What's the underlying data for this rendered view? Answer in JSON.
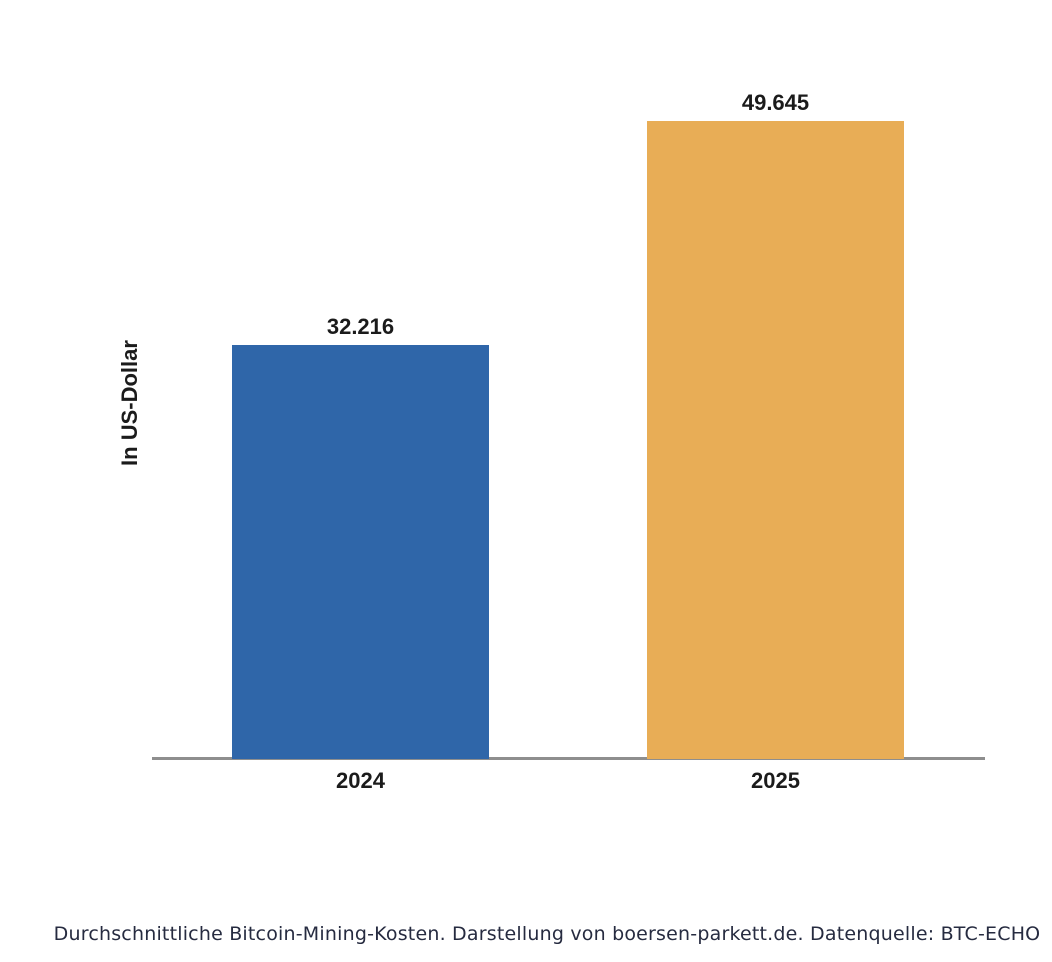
{
  "chart_data": {
    "type": "bar",
    "categories": [
      "2024",
      "2025"
    ],
    "values": [
      32216,
      49645
    ],
    "value_labels": [
      "32.216",
      "49.645"
    ],
    "title": "",
    "xlabel": "",
    "ylabel": "In US-Dollar",
    "ylim": [
      0,
      52000
    ],
    "grid": "off",
    "legend": "none",
    "bar_colors": [
      "#2f66a9",
      "#e8ad56"
    ],
    "caption": "Durchschnittliche Bitcoin-Mining-Kosten. Darstellung von boersen-parkett.de. Datenquelle: BTC-ECHO"
  },
  "colors": {
    "background": "#ffffff",
    "bar_2024": "#2f66a9",
    "bar_2025": "#e8ad56",
    "axis_line": "#8e8e8e",
    "label_text": "#1b1b1b",
    "caption_text": "#262b40"
  }
}
